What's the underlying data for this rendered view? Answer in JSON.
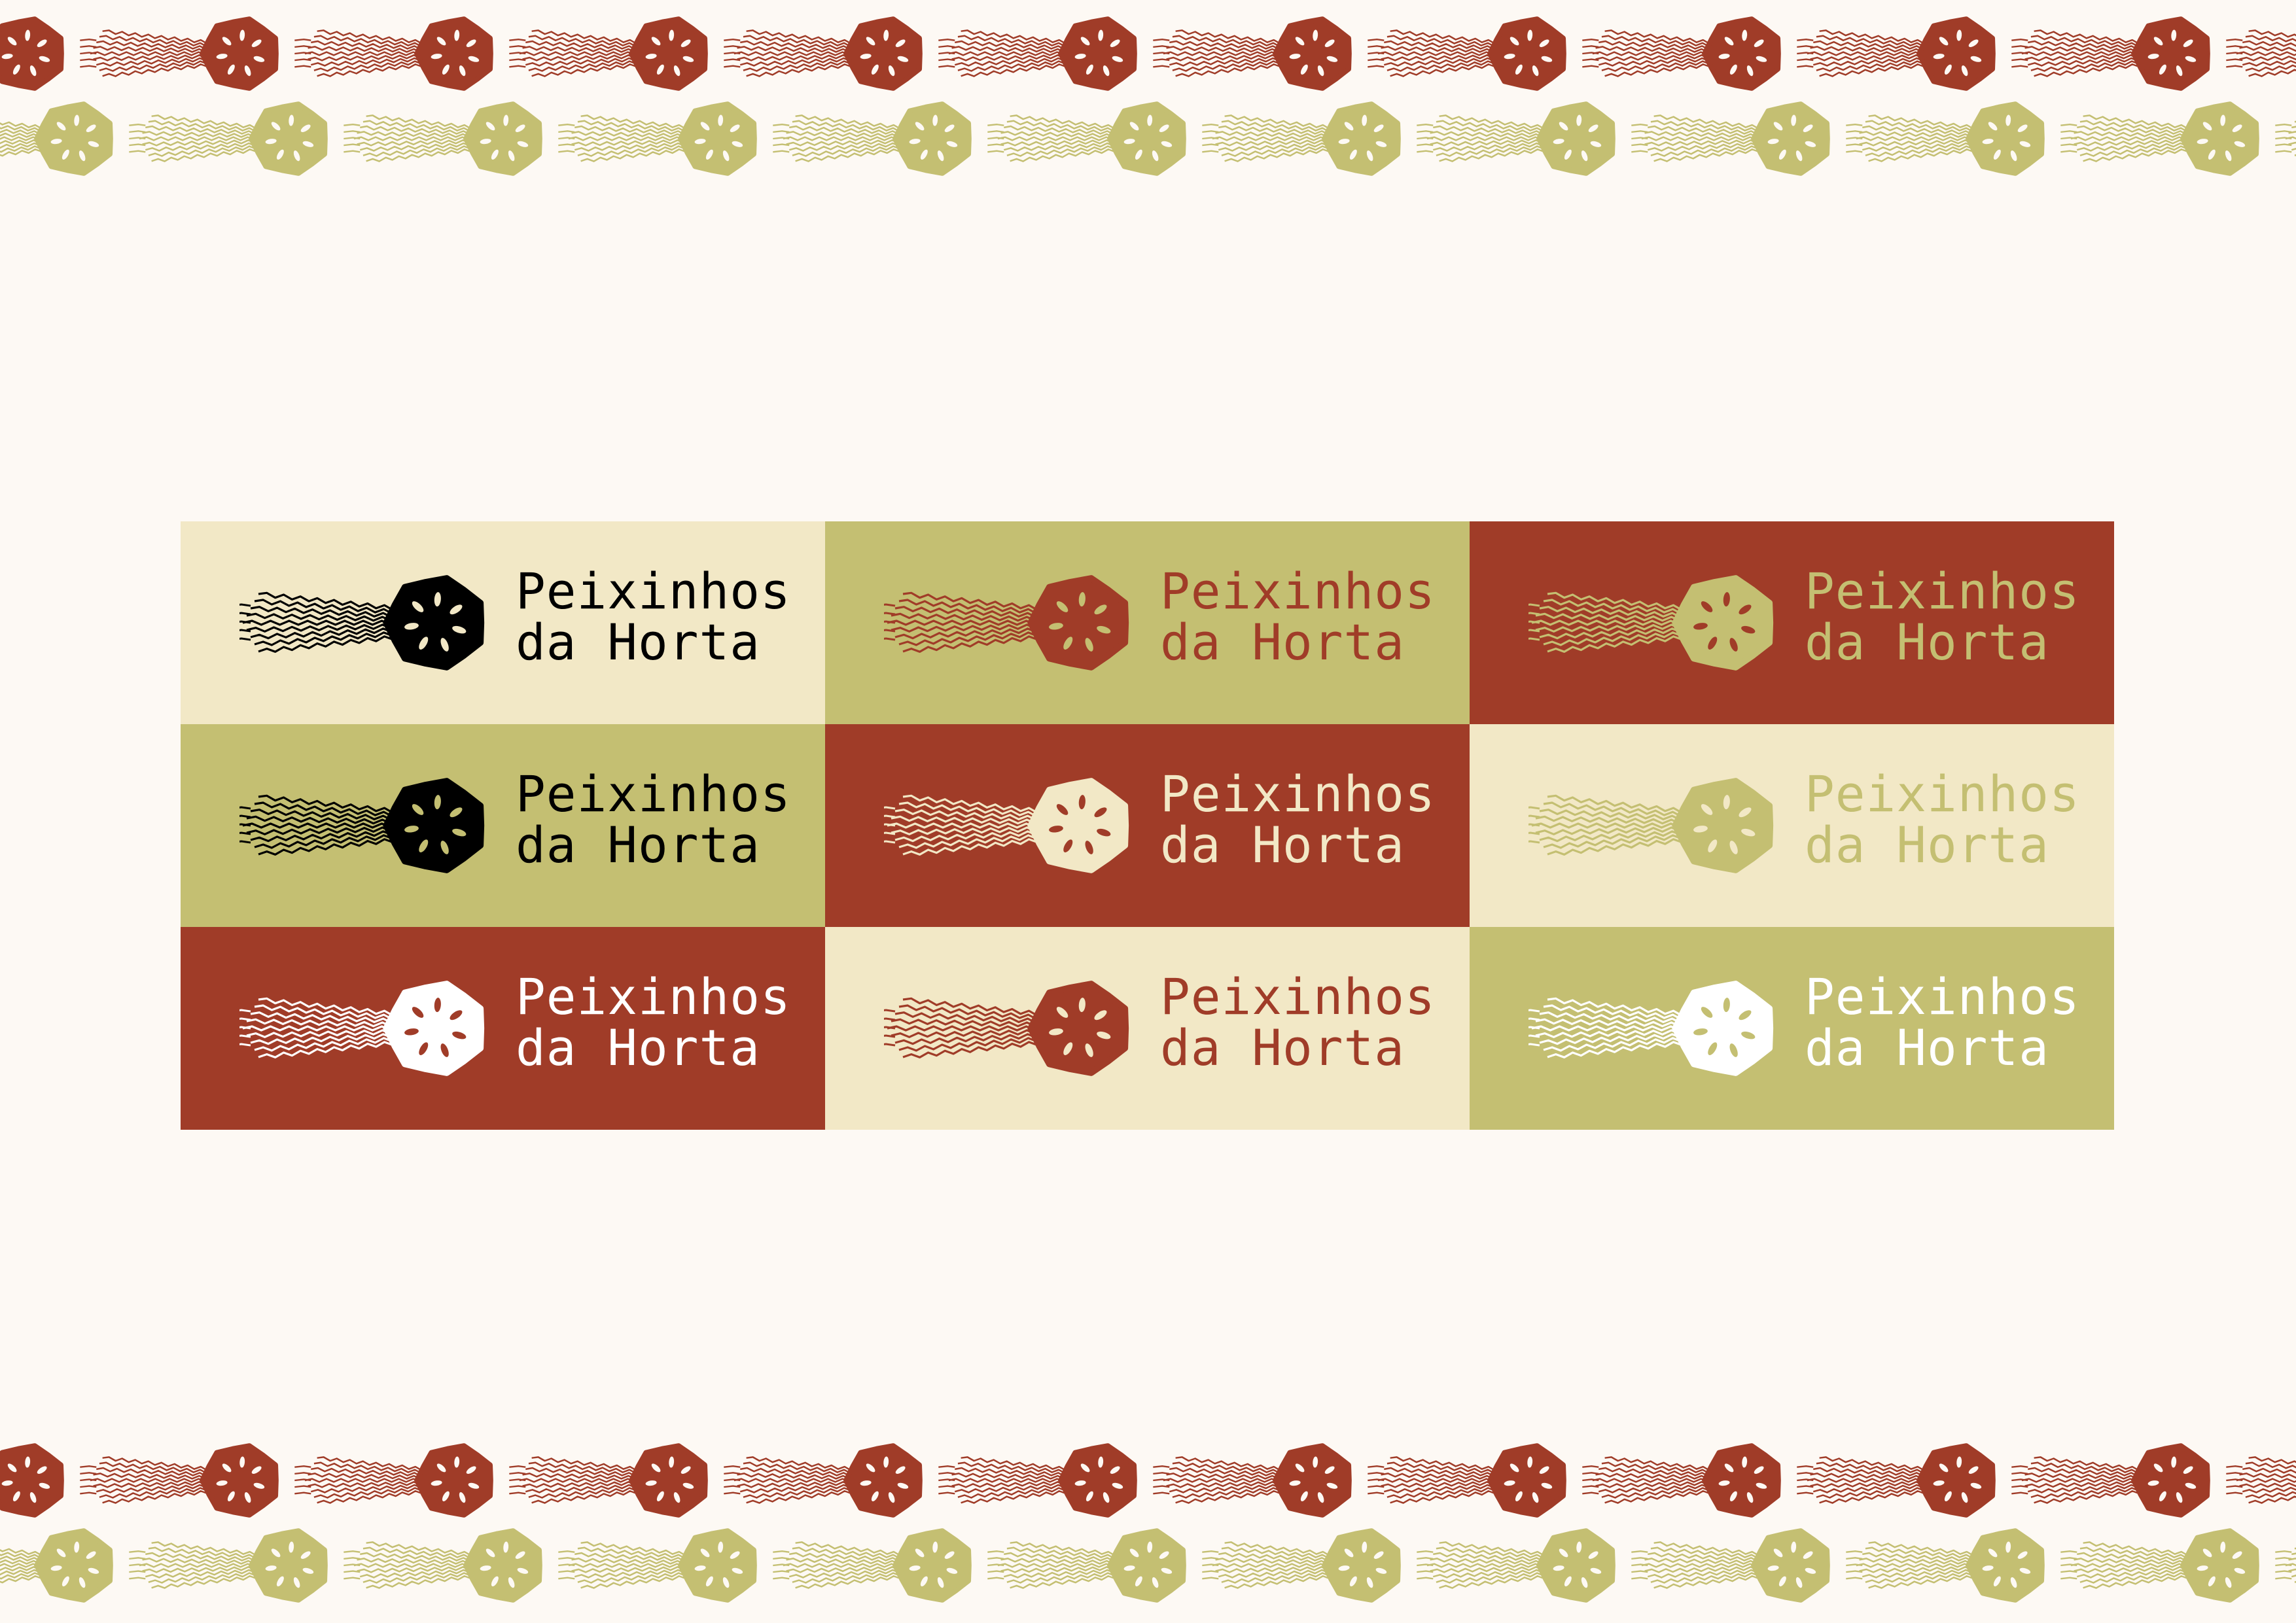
{
  "brand": {
    "line1": "Peixinhos",
    "line2": "da Horta"
  },
  "colors": {
    "page_bg": "#FDF9F4",
    "cream": "#F2E8C6",
    "olive": "#C4BF72",
    "rust": "#A03C28",
    "black": "#000000",
    "white": "#FFFFFF"
  },
  "logo_grid": [
    {
      "bg": "#F2E8C6",
      "mark": "#000000",
      "text": "#000000",
      "seed": "#F2E8C6"
    },
    {
      "bg": "#C4BF72",
      "mark": "#A03C28",
      "text": "#A03C28",
      "seed": "#C4BF72"
    },
    {
      "bg": "#A03C28",
      "mark": "#C4BF72",
      "text": "#C4BF72",
      "seed": "#A03C28"
    },
    {
      "bg": "#C4BF72",
      "mark": "#000000",
      "text": "#000000",
      "seed": "#C4BF72"
    },
    {
      "bg": "#A03C28",
      "mark": "#F2E8C6",
      "text": "#F2E8C6",
      "seed": "#A03C28"
    },
    {
      "bg": "#F2E8C6",
      "mark": "#C4BF72",
      "text": "#C4BF72",
      "seed": "#F2E8C6"
    },
    {
      "bg": "#A03C28",
      "mark": "#FFFFFF",
      "text": "#FFFFFF",
      "seed": "#A03C28"
    },
    {
      "bg": "#F2E8C6",
      "mark": "#A03C28",
      "text": "#A03C28",
      "seed": "#F2E8C6"
    },
    {
      "bg": "#C4BF72",
      "mark": "#FFFFFF",
      "text": "#FFFFFF",
      "seed": "#C4BF72"
    }
  ],
  "pattern": {
    "row_colors": [
      "#A03C28",
      "#C4BF72"
    ],
    "icon": "lotus-root-fish-icon"
  }
}
